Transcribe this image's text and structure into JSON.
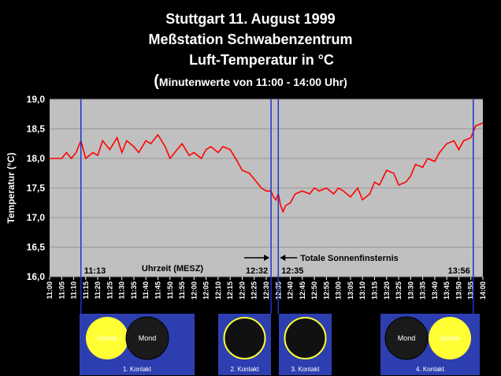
{
  "header": {
    "line1": "Stuttgart 11. August 1999",
    "line2": "Meßstation Schwabenzentrum",
    "line3": "Luft-Temperatur in °C",
    "line4_paren": "(",
    "line4_text": "Minutenwerte von 11:00 - 14:00 Uhr)"
  },
  "colors": {
    "plot_background": "#c0c0c0",
    "series_line": "#ff0000",
    "marker_line": "#2233cc",
    "panel_background": "#2d3fb0",
    "sun": "#ffff33"
  },
  "chart_data": {
    "type": "line",
    "title": "Stuttgart 11. August 1999 — Meßstation Schwabenzentrum — Luft-Temperatur in °C",
    "xlabel": "Uhrzeit (MESZ)",
    "ylabel": "Temperatur (°C)",
    "ylim": [
      16.0,
      19.0
    ],
    "yticks": [
      "19,0",
      "18,5",
      "18,0",
      "17,5",
      "17,0",
      "16,5",
      "16,0"
    ],
    "xticks": [
      "11:00",
      "11:05",
      "11:10",
      "11:15",
      "11:20",
      "11:25",
      "11:30",
      "11:35",
      "11:40",
      "11:45",
      "11:50",
      "11:55",
      "12:00",
      "12:05",
      "12:10",
      "12:15",
      "12:20",
      "12:25",
      "12:30",
      "12:35",
      "12:40",
      "12:45",
      "12:50",
      "12:55",
      "13:00",
      "13:05",
      "13:10",
      "13:15",
      "13:20",
      "13:25",
      "13:30",
      "13:35",
      "13:40",
      "13:45",
      "13:50",
      "13:55",
      "14:00"
    ],
    "grid": "horizontal",
    "x_minutes_from_1100": [
      0,
      5,
      7,
      9,
      11,
      13,
      15,
      18,
      20,
      22,
      25,
      28,
      30,
      32,
      35,
      37,
      40,
      42,
      45,
      48,
      50,
      53,
      55,
      58,
      60,
      63,
      65,
      67,
      70,
      72,
      75,
      78,
      80,
      83,
      85,
      87,
      88,
      90,
      92,
      93,
      94,
      95,
      96,
      97,
      98,
      100,
      102,
      105,
      108,
      110,
      112,
      115,
      118,
      120,
      122,
      125,
      128,
      130,
      133,
      135,
      137,
      140,
      143,
      145,
      148,
      150,
      152,
      155,
      157,
      160,
      162,
      165,
      168,
      170,
      172,
      175,
      177,
      180
    ],
    "y": [
      18.0,
      18.0,
      18.1,
      18.0,
      18.1,
      18.3,
      18.0,
      18.1,
      18.05,
      18.3,
      18.15,
      18.35,
      18.1,
      18.3,
      18.2,
      18.1,
      18.3,
      18.25,
      18.4,
      18.2,
      18.0,
      18.15,
      18.25,
      18.05,
      18.1,
      18.0,
      18.15,
      18.2,
      18.1,
      18.2,
      18.15,
      17.95,
      17.8,
      17.75,
      17.65,
      17.55,
      17.5,
      17.45,
      17.45,
      17.35,
      17.3,
      17.4,
      17.2,
      17.1,
      17.2,
      17.25,
      17.4,
      17.45,
      17.4,
      17.5,
      17.45,
      17.5,
      17.4,
      17.5,
      17.45,
      17.35,
      17.5,
      17.3,
      17.4,
      17.6,
      17.55,
      17.8,
      17.75,
      17.55,
      17.6,
      17.7,
      17.9,
      17.85,
      18.0,
      17.95,
      18.1,
      18.25,
      18.3,
      18.15,
      18.3,
      18.35,
      18.55,
      18.6
    ],
    "events": [
      {
        "time": "11:13",
        "minute": 13,
        "label": "11:13"
      },
      {
        "time": "12:32",
        "minute": 92,
        "label": "12:32"
      },
      {
        "time": "12:35",
        "minute": 95,
        "label": "12:35"
      },
      {
        "time": "13:56",
        "minute": 176,
        "label": "13:56"
      }
    ],
    "annotation": "Totale Sonnenfinsternis"
  },
  "panels": [
    {
      "caption": "1. Kontakt",
      "sun_label": "Sonne",
      "moon_label": "Mond"
    },
    {
      "caption": "2. Kontakt"
    },
    {
      "caption": "3. Kontakt"
    },
    {
      "caption": "4. Kontakt",
      "sun_label": "Sonne",
      "moon_label": "Mond"
    }
  ]
}
